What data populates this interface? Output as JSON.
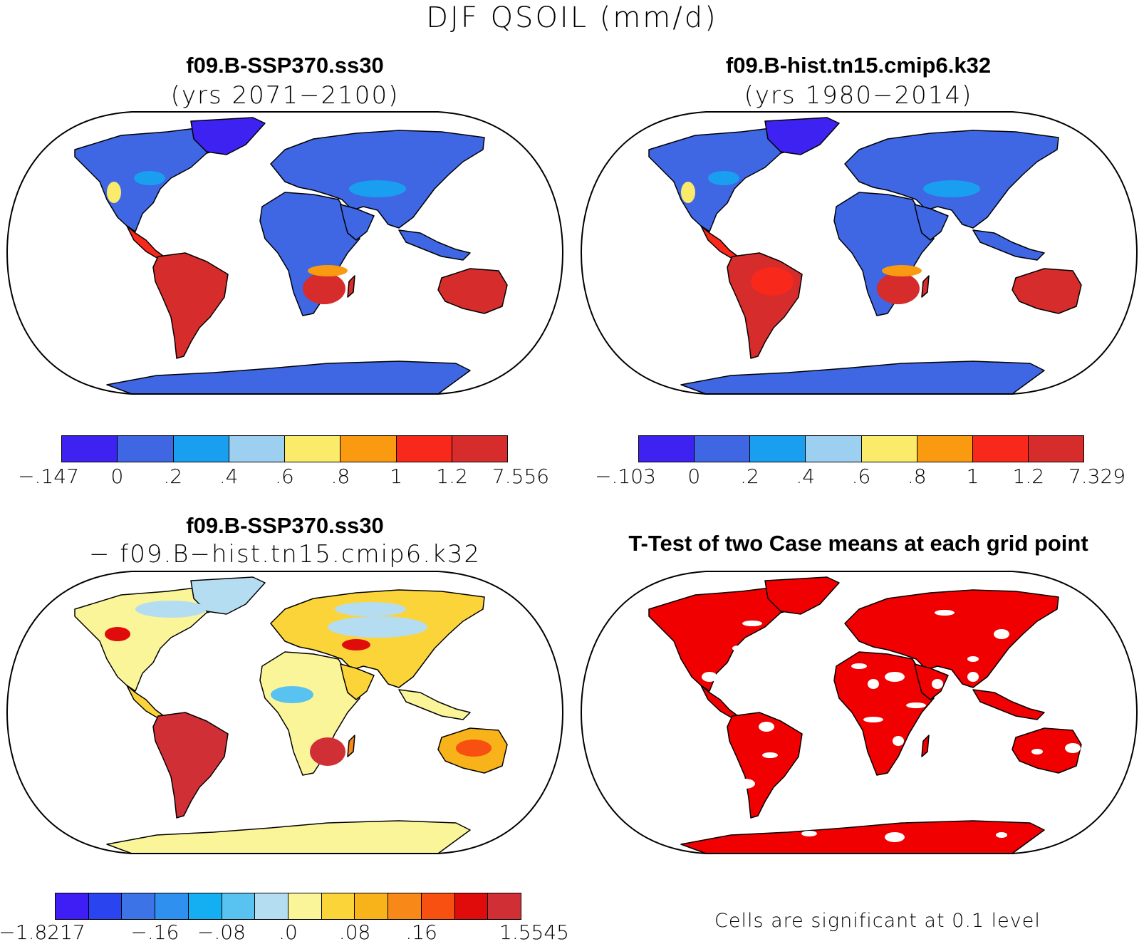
{
  "figure_title": "DJF QSOIL (mm/d)",
  "colors": {
    "seq": [
      "#3d22f2",
      "#3f66e3",
      "#1a9ff0",
      "#9ccff0",
      "#fbeb6a",
      "#fa9a10",
      "#f8281a",
      "#d62c2c"
    ],
    "div": [
      "#3f1df5",
      "#2a45f0",
      "#3c74e8",
      "#2f90ef",
      "#14aef2",
      "#58c3f0",
      "#b4ddf2",
      "#fbf59a",
      "#fbd43a",
      "#f9b31a",
      "#f88818",
      "#f75010",
      "#e00c0c",
      "#d02f35"
    ],
    "sig": "#f00000",
    "ocean": "#ffffff"
  },
  "panels": [
    {
      "title": "f09.B-SSP370.ss30",
      "subtitle": "(yrs 2071−2100)",
      "colorbar_labels": [
        "−.147",
        "0",
        ".2",
        ".4",
        ".6",
        ".8",
        "1",
        "1.2",
        "7.556"
      ]
    },
    {
      "title": "f09.B-hist.tn15.cmip6.k32",
      "subtitle": "(yrs 1980−2014)",
      "colorbar_labels": [
        "−.103",
        "0",
        ".2",
        ".4",
        ".6",
        ".8",
        "1",
        "1.2",
        "7.329"
      ]
    },
    {
      "title": "f09.B-SSP370.ss30",
      "subtitle": "− f09.B−hist.tn15.cmip6.k32",
      "colorbar_labels": [
        "−1.8217",
        "−.16",
        "−.08",
        ".0",
        ".08",
        ".16",
        "1.5545"
      ]
    },
    {
      "title": "T-Test of two Case means at each grid point",
      "note": "Cells are significant at 0.1 level"
    }
  ]
}
